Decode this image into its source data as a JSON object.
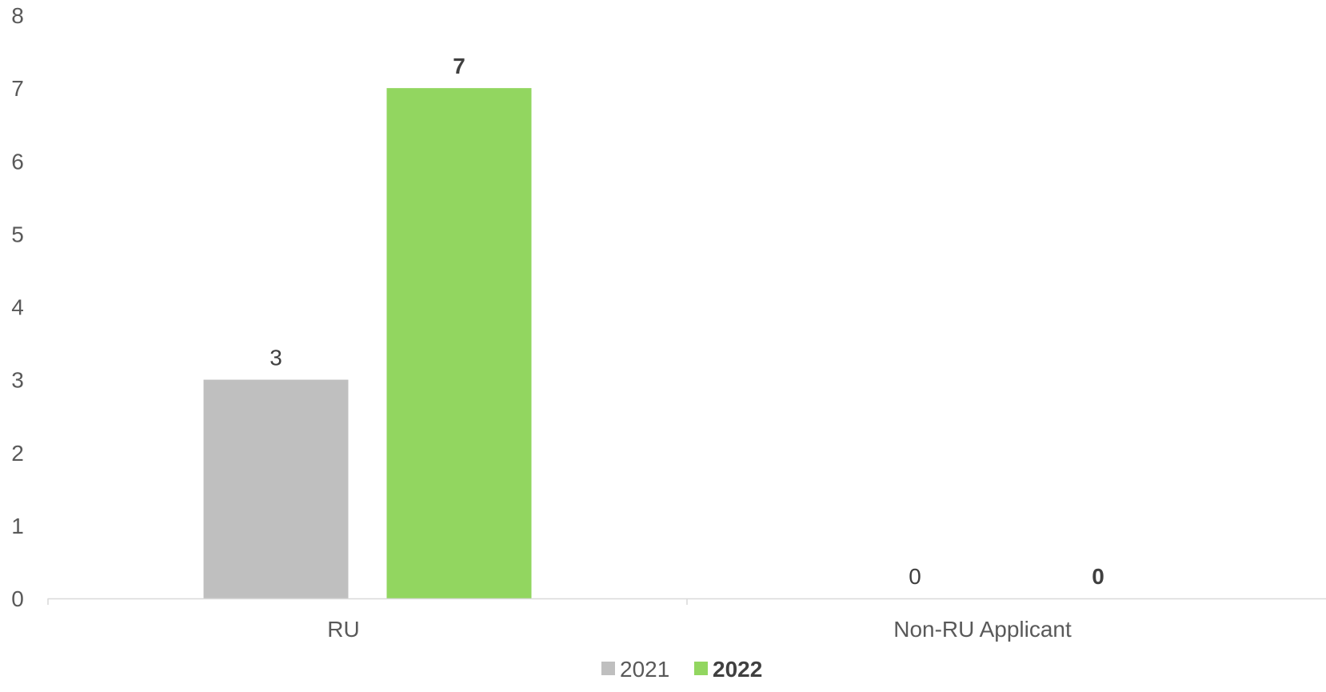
{
  "chart_data": {
    "type": "bar",
    "categories": [
      "RU",
      "Non-RU Applicant"
    ],
    "series": [
      {
        "name": "2021",
        "values": [
          3,
          0
        ],
        "color": "#bfbfbf",
        "bold": false
      },
      {
        "name": "2022",
        "values": [
          7,
          0
        ],
        "color": "#92d660",
        "bold": true
      }
    ],
    "title": "",
    "xlabel": "",
    "ylabel": "",
    "ylim": [
      0,
      8
    ],
    "yticks": [
      0,
      1,
      2,
      3,
      4,
      5,
      6,
      7,
      8
    ],
    "grid": false,
    "legend": "bottom",
    "data_labels": true
  },
  "colors": {
    "axis": "#d9d9d9",
    "text": "#595959"
  }
}
